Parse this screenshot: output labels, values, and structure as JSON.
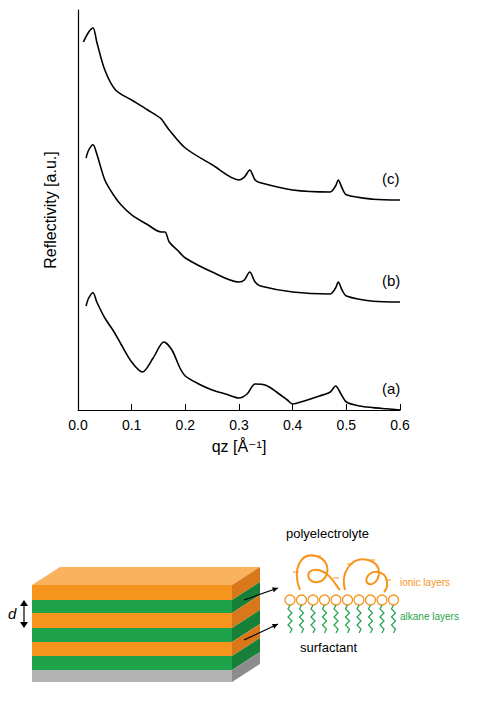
{
  "chart_data": {
    "type": "line",
    "x_label": "qz [Å⁻¹]",
    "y_label": "Reflectivity [a.u.]",
    "xlim": [
      0,
      0.6
    ],
    "xticks": [
      {
        "value": 0,
        "label": "0.0"
      },
      0.1,
      0.2,
      0.3,
      0.4,
      0.5,
      0.6
    ],
    "ylim": [
      0,
      10
    ],
    "yticks": [],
    "tick_labels": "x",
    "grid": false,
    "series": [
      {
        "name": "(a)",
        "color": "#000000",
        "x": [
          0.015,
          0.02,
          0.028,
          0.035,
          0.05,
          0.065,
          0.08,
          0.1,
          0.12,
          0.14,
          0.16,
          0.175,
          0.19,
          0.2,
          0.225,
          0.25,
          0.275,
          0.3,
          0.315,
          0.33,
          0.35,
          0.37,
          0.39,
          0.4,
          0.42,
          0.45,
          0.47,
          0.48,
          0.49,
          0.5,
          0.525,
          0.55,
          0.575,
          0.6
        ],
        "values": [
          2.6,
          2.8,
          2.93,
          2.7,
          2.3,
          2.0,
          1.65,
          1.2,
          0.95,
          1.3,
          1.7,
          1.5,
          1.05,
          0.85,
          0.65,
          0.5,
          0.4,
          0.3,
          0.4,
          0.65,
          0.62,
          0.45,
          0.25,
          0.15,
          0.22,
          0.35,
          0.45,
          0.6,
          0.4,
          0.2,
          0.1,
          0.06,
          0.03,
          0.0
        ]
      },
      {
        "name": "(b)",
        "color": "#000000",
        "x": [
          0.015,
          0.02,
          0.028,
          0.035,
          0.05,
          0.065,
          0.08,
          0.1,
          0.13,
          0.155,
          0.162,
          0.17,
          0.185,
          0.2,
          0.25,
          0.3,
          0.31,
          0.32,
          0.33,
          0.34,
          0.4,
          0.47,
          0.48,
          0.485,
          0.492,
          0.5,
          0.55,
          0.6
        ],
        "values": [
          6.3,
          6.5,
          6.63,
          6.4,
          5.75,
          5.4,
          5.13,
          4.88,
          4.63,
          4.45,
          4.45,
          4.2,
          4.0,
          3.8,
          3.45,
          3.2,
          3.25,
          3.45,
          3.2,
          3.1,
          2.95,
          2.9,
          3.05,
          3.2,
          3.0,
          2.85,
          2.72,
          2.7
        ]
      },
      {
        "name": "(c)",
        "color": "#000000",
        "x": [
          0.01,
          0.02,
          0.028,
          0.035,
          0.05,
          0.07,
          0.1,
          0.13,
          0.155,
          0.162,
          0.17,
          0.2,
          0.25,
          0.3,
          0.31,
          0.32,
          0.33,
          0.34,
          0.4,
          0.47,
          0.48,
          0.485,
          0.492,
          0.5,
          0.55,
          0.6
        ],
        "values": [
          9.2,
          9.45,
          9.55,
          9.2,
          8.5,
          8.0,
          7.75,
          7.5,
          7.28,
          7.15,
          7.0,
          6.55,
          6.13,
          5.75,
          5.82,
          6.0,
          5.75,
          5.68,
          5.5,
          5.45,
          5.6,
          5.75,
          5.55,
          5.38,
          5.27,
          5.25
        ]
      }
    ]
  },
  "diagram": {
    "spacing_label": "d",
    "polyelectrolyte": "polyelectrolyte",
    "ionic_layers": "ionic layers",
    "alkane_layers": "alkane layers",
    "surfactant": "surfactant"
  }
}
